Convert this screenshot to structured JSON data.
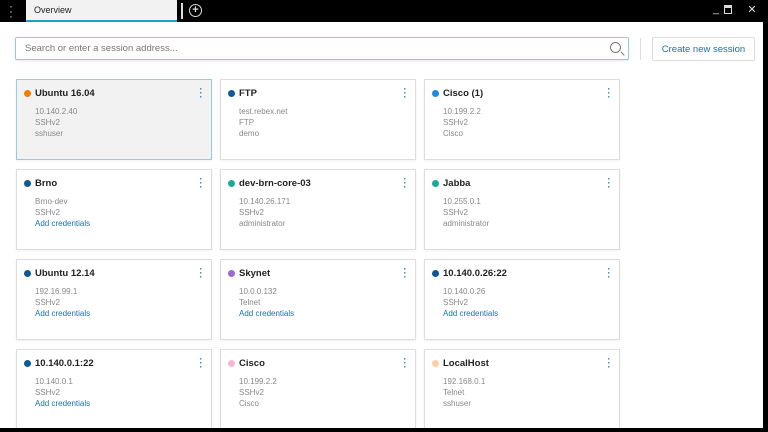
{
  "titlebar": {
    "tab_label": "Overview",
    "icons": {
      "menu": "vertical-dots-icon",
      "add": "plus-circle-icon",
      "minimize": "minimize-icon",
      "maximize": "maximize-icon",
      "close": "close-icon"
    }
  },
  "search": {
    "placeholder": "Search or enter a session address...",
    "value": ""
  },
  "create_label": "Create new session",
  "accent": "#1a73a8",
  "sessions": [
    {
      "name": "Ubuntu 16.04",
      "color": "#f57c00",
      "selected": true,
      "lines": [
        "10.140.2.40",
        "SSHv2",
        "sshuser"
      ],
      "link": ""
    },
    {
      "name": "FTP",
      "color": "#0d5a96",
      "lines": [
        "test.rebex.net",
        "FTP",
        "demo"
      ],
      "link": ""
    },
    {
      "name": "Cisco (1)",
      "color": "#1e88e5",
      "lines": [
        "10.199.2.2",
        "SSHv2",
        "Cisco"
      ],
      "link": ""
    },
    {
      "name": "Brno",
      "color": "#0d5a96",
      "lines": [
        "Brno-dev",
        "SSHv2"
      ],
      "link": "Add credentials"
    },
    {
      "name": "dev-brn-core-03",
      "color": "#1aaa9a",
      "lines": [
        "10.140.26.171",
        "SSHv2",
        "administrator"
      ],
      "link": ""
    },
    {
      "name": "Jabba",
      "color": "#1aaa9a",
      "lines": [
        "10.255.0.1",
        "SSHv2",
        "administrator"
      ],
      "link": ""
    },
    {
      "name": "Ubuntu 12.14",
      "color": "#0d5a96",
      "lines": [
        "192.16.99.1",
        "SSHv2"
      ],
      "link": "Add credentials"
    },
    {
      "name": "Skynet",
      "color": "#a066d3",
      "lines": [
        "10.0.0.132",
        "Telnet"
      ],
      "link": "Add credentials"
    },
    {
      "name": "10.140.0.26:22",
      "color": "#0d5a96",
      "lines": [
        "10.140.0.26",
        "SSHv2"
      ],
      "link": "Add credentials"
    },
    {
      "name": "10.140.0.1:22",
      "color": "#0d5a96",
      "lines": [
        "10.140.0.1",
        "SSHv2"
      ],
      "link": "Add credentials"
    },
    {
      "name": "Cisco",
      "color": "#f7b6d6",
      "lines": [
        "10.199.2.2",
        "SSHv2",
        "Cisco"
      ],
      "link": ""
    },
    {
      "name": "LocalHost",
      "color": "#fcd2a4",
      "lines": [
        "192.168.0.1",
        "Telnet",
        "sshuser"
      ],
      "link": ""
    }
  ]
}
